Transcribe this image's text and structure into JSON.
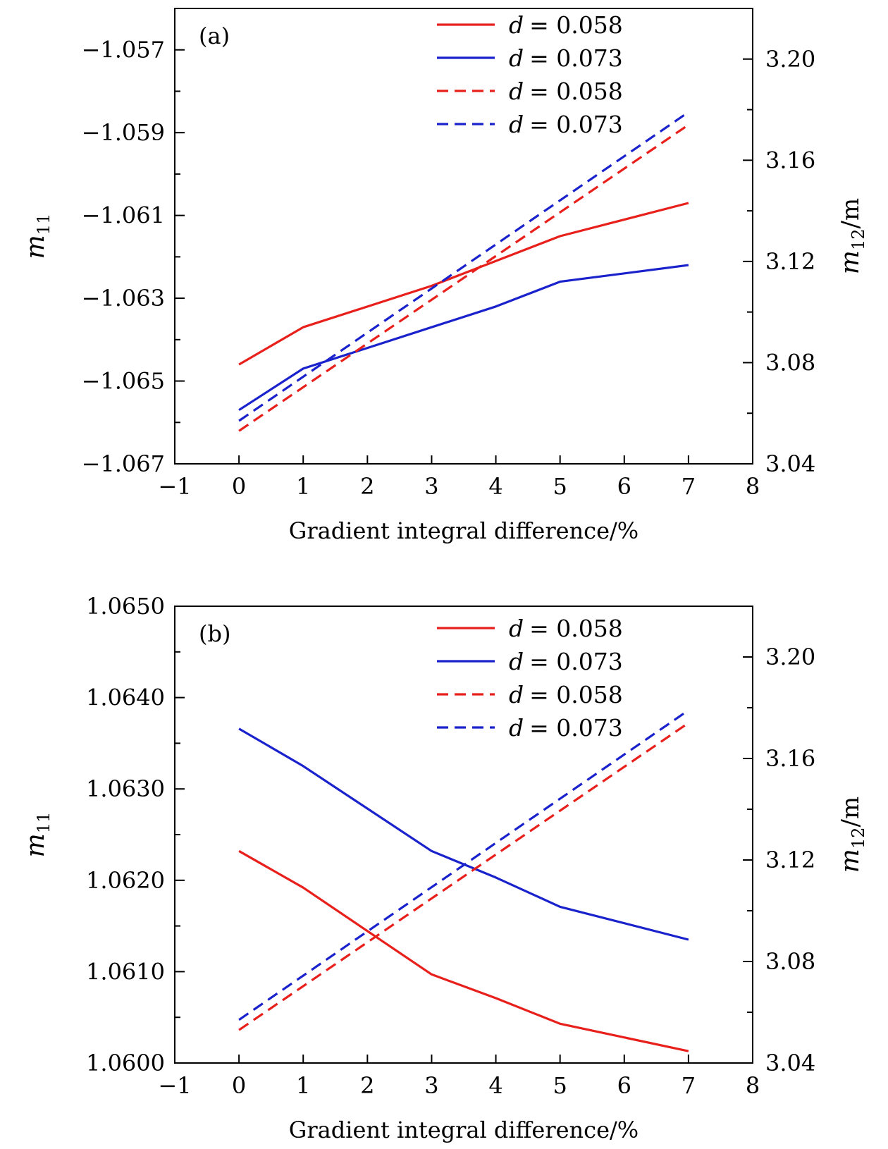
{
  "chart_data": [
    {
      "type": "line",
      "panel_label": "(a)",
      "xlabel": "Gradient integral difference/%",
      "ylabel_left": {
        "base": "m",
        "sub": "11"
      },
      "ylabel_right": {
        "base": "m",
        "sub": "12",
        "suffix": "/m"
      },
      "xlim": [
        -1,
        8
      ],
      "xticks": [
        -1,
        0,
        1,
        2,
        3,
        4,
        5,
        6,
        7,
        8
      ],
      "xtick_labels": [
        "−1",
        "0",
        "1",
        "2",
        "3",
        "4",
        "5",
        "6",
        "7",
        "8"
      ],
      "ylim_left": [
        -1.067,
        -1.056
      ],
      "yticks_left": [
        -1.067,
        -1.065,
        -1.063,
        -1.061,
        -1.059,
        -1.057
      ],
      "ytick_labels_left": [
        "−1.067",
        "−1.065",
        "−1.063",
        "−1.061",
        "−1.059",
        "−1.057"
      ],
      "ylim_right": [
        3.04,
        3.22
      ],
      "yticks_right": [
        3.04,
        3.08,
        3.12,
        3.16,
        3.2
      ],
      "ytick_labels_right": [
        "3.04",
        "3.08",
        "3.12",
        "3.16",
        "3.20"
      ],
      "legend_position": "top-right",
      "series": [
        {
          "name": "d = 0.058",
          "legend_var": "d",
          "legend_value": "= 0.058",
          "axis": "left",
          "style": "solid",
          "color": "#e8201c",
          "x": [
            0,
            1,
            3,
            4,
            5,
            7
          ],
          "y": [
            -1.0646,
            -1.0637,
            -1.0627,
            -1.0621,
            -1.0615,
            -1.0607
          ]
        },
        {
          "name": "d = 0.073",
          "legend_var": "d",
          "legend_value": "= 0.073",
          "axis": "left",
          "style": "solid",
          "color": "#1a22cc",
          "x": [
            0,
            1,
            2,
            3,
            4,
            5,
            7
          ],
          "y": [
            -1.0657,
            -1.0647,
            -1.0642,
            -1.0637,
            -1.0632,
            -1.0626,
            -1.0622
          ]
        },
        {
          "name": "d = 0.058",
          "legend_var": "d",
          "legend_value": "= 0.058",
          "axis": "right",
          "style": "dashed",
          "color": "#e8201c",
          "x": [
            0,
            7
          ],
          "y": [
            3.053,
            3.174
          ]
        },
        {
          "name": "d = 0.073",
          "legend_var": "d",
          "legend_value": "= 0.073",
          "axis": "right",
          "style": "dashed",
          "color": "#1a22cc",
          "x": [
            0,
            7
          ],
          "y": [
            3.057,
            3.179
          ]
        }
      ]
    },
    {
      "type": "line",
      "panel_label": "(b)",
      "xlabel": "Gradient integral difference/%",
      "ylabel_left": {
        "base": "m",
        "sub": "11"
      },
      "ylabel_right": {
        "base": "m",
        "sub": "12",
        "suffix": "/m"
      },
      "xlim": [
        -1,
        8
      ],
      "xticks": [
        -1,
        0,
        1,
        2,
        3,
        4,
        5,
        6,
        7,
        8
      ],
      "xtick_labels": [
        "−1",
        "0",
        "1",
        "2",
        "3",
        "4",
        "5",
        "6",
        "7",
        "8"
      ],
      "ylim_left": [
        1.06,
        1.065
      ],
      "yticks_left": [
        1.06,
        1.061,
        1.062,
        1.063,
        1.064,
        1.065
      ],
      "ytick_labels_left": [
        "1.0600",
        "1.0610",
        "1.0620",
        "1.0630",
        "1.0640",
        "1.0650"
      ],
      "ylim_right": [
        3.04,
        3.22
      ],
      "yticks_right": [
        3.04,
        3.08,
        3.12,
        3.16,
        3.2
      ],
      "ytick_labels_right": [
        "3.04",
        "3.08",
        "3.12",
        "3.16",
        "3.20"
      ],
      "legend_position": "top-right",
      "series": [
        {
          "name": "d = 0.058",
          "legend_var": "d",
          "legend_value": "= 0.058",
          "axis": "left",
          "style": "solid",
          "color": "#e8201c",
          "x": [
            0,
            1,
            3,
            4,
            5,
            7
          ],
          "y": [
            1.06232,
            1.06192,
            1.06097,
            1.06071,
            1.06043,
            1.06013
          ]
        },
        {
          "name": "d = 0.073",
          "legend_var": "d",
          "legend_value": "= 0.073",
          "axis": "left",
          "style": "solid",
          "color": "#1a22cc",
          "x": [
            0,
            1,
            3,
            4,
            5,
            7
          ],
          "y": [
            1.06366,
            1.06325,
            1.06232,
            1.06203,
            1.06171,
            1.06135
          ]
        },
        {
          "name": "d = 0.058",
          "legend_var": "d",
          "legend_value": "= 0.058",
          "axis": "right",
          "style": "dashed",
          "color": "#e8201c",
          "x": [
            0,
            7
          ],
          "y": [
            3.053,
            3.174
          ]
        },
        {
          "name": "d = 0.073",
          "legend_var": "d",
          "legend_value": "= 0.073",
          "axis": "right",
          "style": "dashed",
          "color": "#1a22cc",
          "x": [
            0,
            7
          ],
          "y": [
            3.057,
            3.179
          ]
        }
      ]
    }
  ]
}
